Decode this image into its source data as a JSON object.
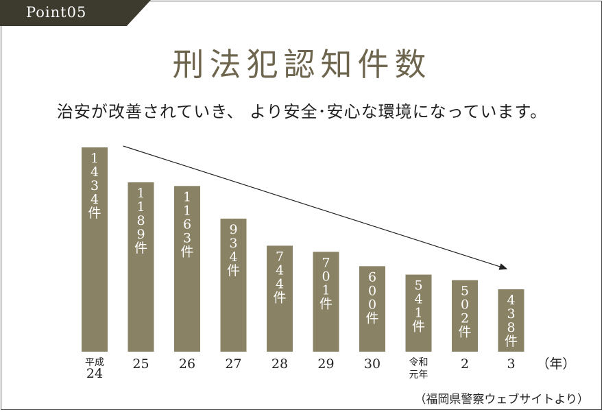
{
  "badge": {
    "label": "Point",
    "number": "05"
  },
  "title": "刑法犯認知件数",
  "subtitle": "治安が改善されていき、 より安全･安心な環境になっています。",
  "source": "（福岡県警察ウェブサイトより）",
  "colors": {
    "bar": "#8a8265",
    "bar_text": "#ffffff",
    "badge": "#3d3a2e",
    "title": "#6d654d"
  },
  "chart_data": {
    "type": "bar",
    "categories": [
      "平成24",
      "25",
      "26",
      "27",
      "28",
      "29",
      "30",
      "令和元年",
      "2",
      "3"
    ],
    "category_lines": [
      [
        "平成",
        "24"
      ],
      [
        "25"
      ],
      [
        "26"
      ],
      [
        "27"
      ],
      [
        "28"
      ],
      [
        "29"
      ],
      [
        "30"
      ],
      [
        "令和",
        "元年"
      ],
      [
        "2"
      ],
      [
        "3"
      ]
    ],
    "values": [
      1434,
      1189,
      1163,
      934,
      744,
      701,
      600,
      541,
      502,
      438
    ],
    "value_labels": [
      "1434件",
      "1189件",
      "1163件",
      "934件",
      "744件",
      "701件",
      "600件",
      "541件",
      "502件",
      "438件"
    ],
    "x_unit": "（年）",
    "trend_arrow": true,
    "grid": false
  }
}
